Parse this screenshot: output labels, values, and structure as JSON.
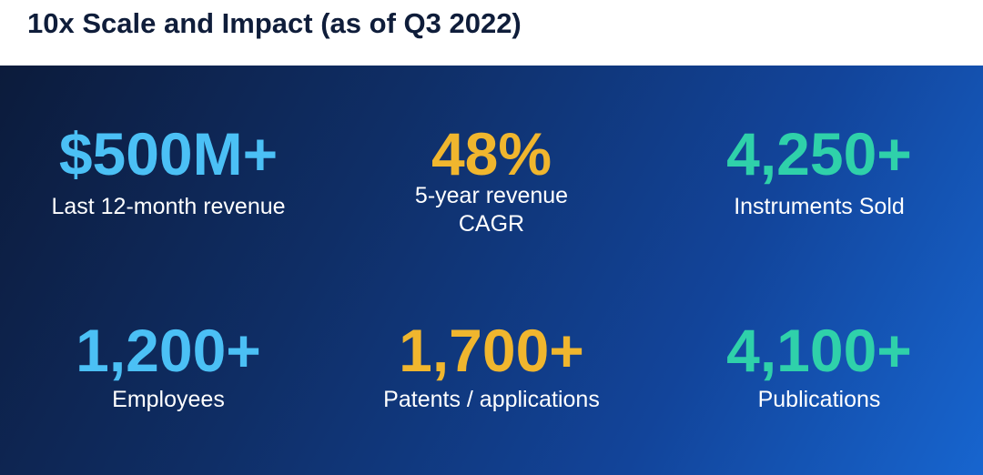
{
  "title": "10x Scale and Impact (as of Q3 2022)",
  "colors": {
    "blue": "#4bc0f5",
    "gold": "#f0b62e",
    "teal": "#2fd1aa",
    "header_text": "#0f1d3a",
    "label_text": "#ffffff"
  },
  "stats": [
    {
      "value": "$500M+",
      "label": "Last 12-month revenue",
      "color": "blue"
    },
    {
      "value": "48%",
      "label": "5-year revenue\nCAGR",
      "color": "gold"
    },
    {
      "value": "4,250+",
      "label": "Instruments Sold",
      "color": "teal"
    },
    {
      "value": "1,200+",
      "label": "Employees",
      "color": "blue"
    },
    {
      "value": "1,700+",
      "label": "Patents / applications",
      "color": "gold"
    },
    {
      "value": "4,100+",
      "label": "Publications",
      "color": "teal"
    }
  ]
}
